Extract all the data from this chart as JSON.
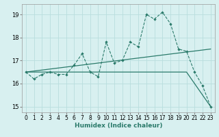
{
  "title": "",
  "xlabel": "Humidex (Indice chaleur)",
  "background_color": "#d8f0f0",
  "grid_color": "#b8dede",
  "line_color": "#2a7a6a",
  "xlim": [
    -0.5,
    23.5
  ],
  "ylim": [
    14.75,
    19.45
  ],
  "xticks": [
    0,
    1,
    2,
    3,
    4,
    5,
    6,
    7,
    8,
    9,
    10,
    11,
    12,
    13,
    14,
    15,
    16,
    17,
    18,
    19,
    20,
    21,
    22,
    23
  ],
  "yticks": [
    15,
    16,
    17,
    18,
    19
  ],
  "line1_x": [
    0,
    1,
    2,
    3,
    4,
    5,
    6,
    7,
    8,
    9,
    10,
    11,
    12,
    13,
    14,
    15,
    16,
    17,
    18,
    19,
    20,
    21,
    22,
    23
  ],
  "line1_y": [
    16.5,
    16.2,
    16.4,
    16.5,
    16.4,
    16.4,
    16.8,
    17.3,
    16.5,
    16.3,
    17.8,
    16.9,
    17.0,
    17.8,
    17.6,
    19.0,
    18.8,
    19.1,
    18.6,
    17.5,
    17.4,
    16.5,
    15.9,
    15.0
  ],
  "line2_x": [
    0,
    23
  ],
  "line2_y": [
    16.5,
    17.5
  ],
  "line3_x": [
    0,
    20,
    23
  ],
  "line3_y": [
    16.5,
    16.5,
    15.0
  ],
  "figsize": [
    3.2,
    2.0
  ],
  "dpi": 100
}
